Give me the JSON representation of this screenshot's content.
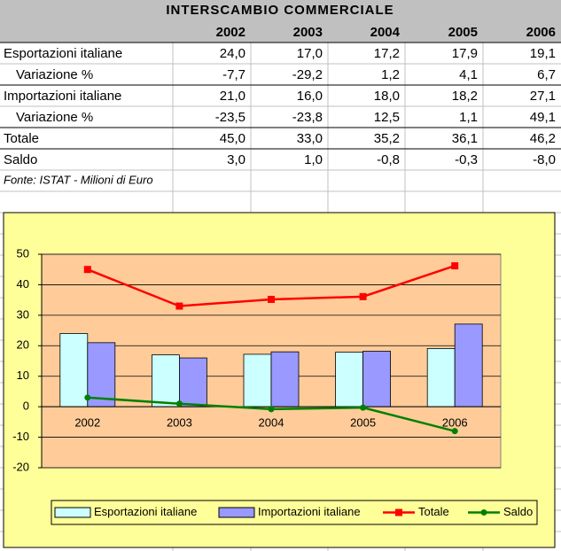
{
  "table": {
    "title": "INTERSCAMBIO COMMERCIALE",
    "columns": [
      "2002",
      "2003",
      "2004",
      "2005",
      "2006"
    ],
    "rows": [
      {
        "label": "Esportazioni italiane",
        "cells": [
          "24,0",
          "17,0",
          "17,2",
          "17,9",
          "19,1"
        ]
      },
      {
        "label": "Variazione %",
        "cells": [
          "-7,7",
          "-29,2",
          "1,2",
          "4,1",
          "6,7"
        ]
      },
      {
        "label": "Importazioni italiane",
        "cells": [
          "21,0",
          "16,0",
          "18,0",
          "18,2",
          "27,1"
        ]
      },
      {
        "label": "Variazione %",
        "cells": [
          "-23,5",
          "-23,8",
          "12,5",
          "1,1",
          "49,1"
        ]
      },
      {
        "label": "Totale",
        "cells": [
          "45,0",
          "33,0",
          "35,2",
          "36,1",
          "46,2"
        ]
      },
      {
        "label": "Saldo",
        "cells": [
          "3,0",
          "1,0",
          "-0,8",
          "-0,3",
          "-8,0"
        ]
      }
    ],
    "note": "Fonte: ISTAT - Milioni di Euro"
  },
  "chart_data": {
    "type": "bar-line",
    "categories": [
      "2002",
      "2003",
      "2004",
      "2005",
      "2006"
    ],
    "series": [
      {
        "name": "Esportazioni italiane",
        "type": "bar",
        "color": "#ccffff",
        "values": [
          24.0,
          17.0,
          17.2,
          17.9,
          19.1
        ]
      },
      {
        "name": "Importazioni italiane",
        "type": "bar",
        "color": "#9999ff",
        "values": [
          21.0,
          16.0,
          18.0,
          18.2,
          27.1
        ]
      },
      {
        "name": "Totale",
        "type": "line",
        "marker": "square",
        "color": "#ff0000",
        "values": [
          45.0,
          33.0,
          35.2,
          36.1,
          46.2
        ]
      },
      {
        "name": "Saldo",
        "type": "line",
        "marker": "circle",
        "color": "#008000",
        "values": [
          3.0,
          1.0,
          -0.8,
          -0.3,
          -8.0
        ]
      }
    ],
    "ylim": [
      -20,
      50
    ],
    "yticks": [
      -20,
      -10,
      0,
      10,
      20,
      30,
      40,
      50
    ],
    "grid": true,
    "legend": "bottom"
  }
}
